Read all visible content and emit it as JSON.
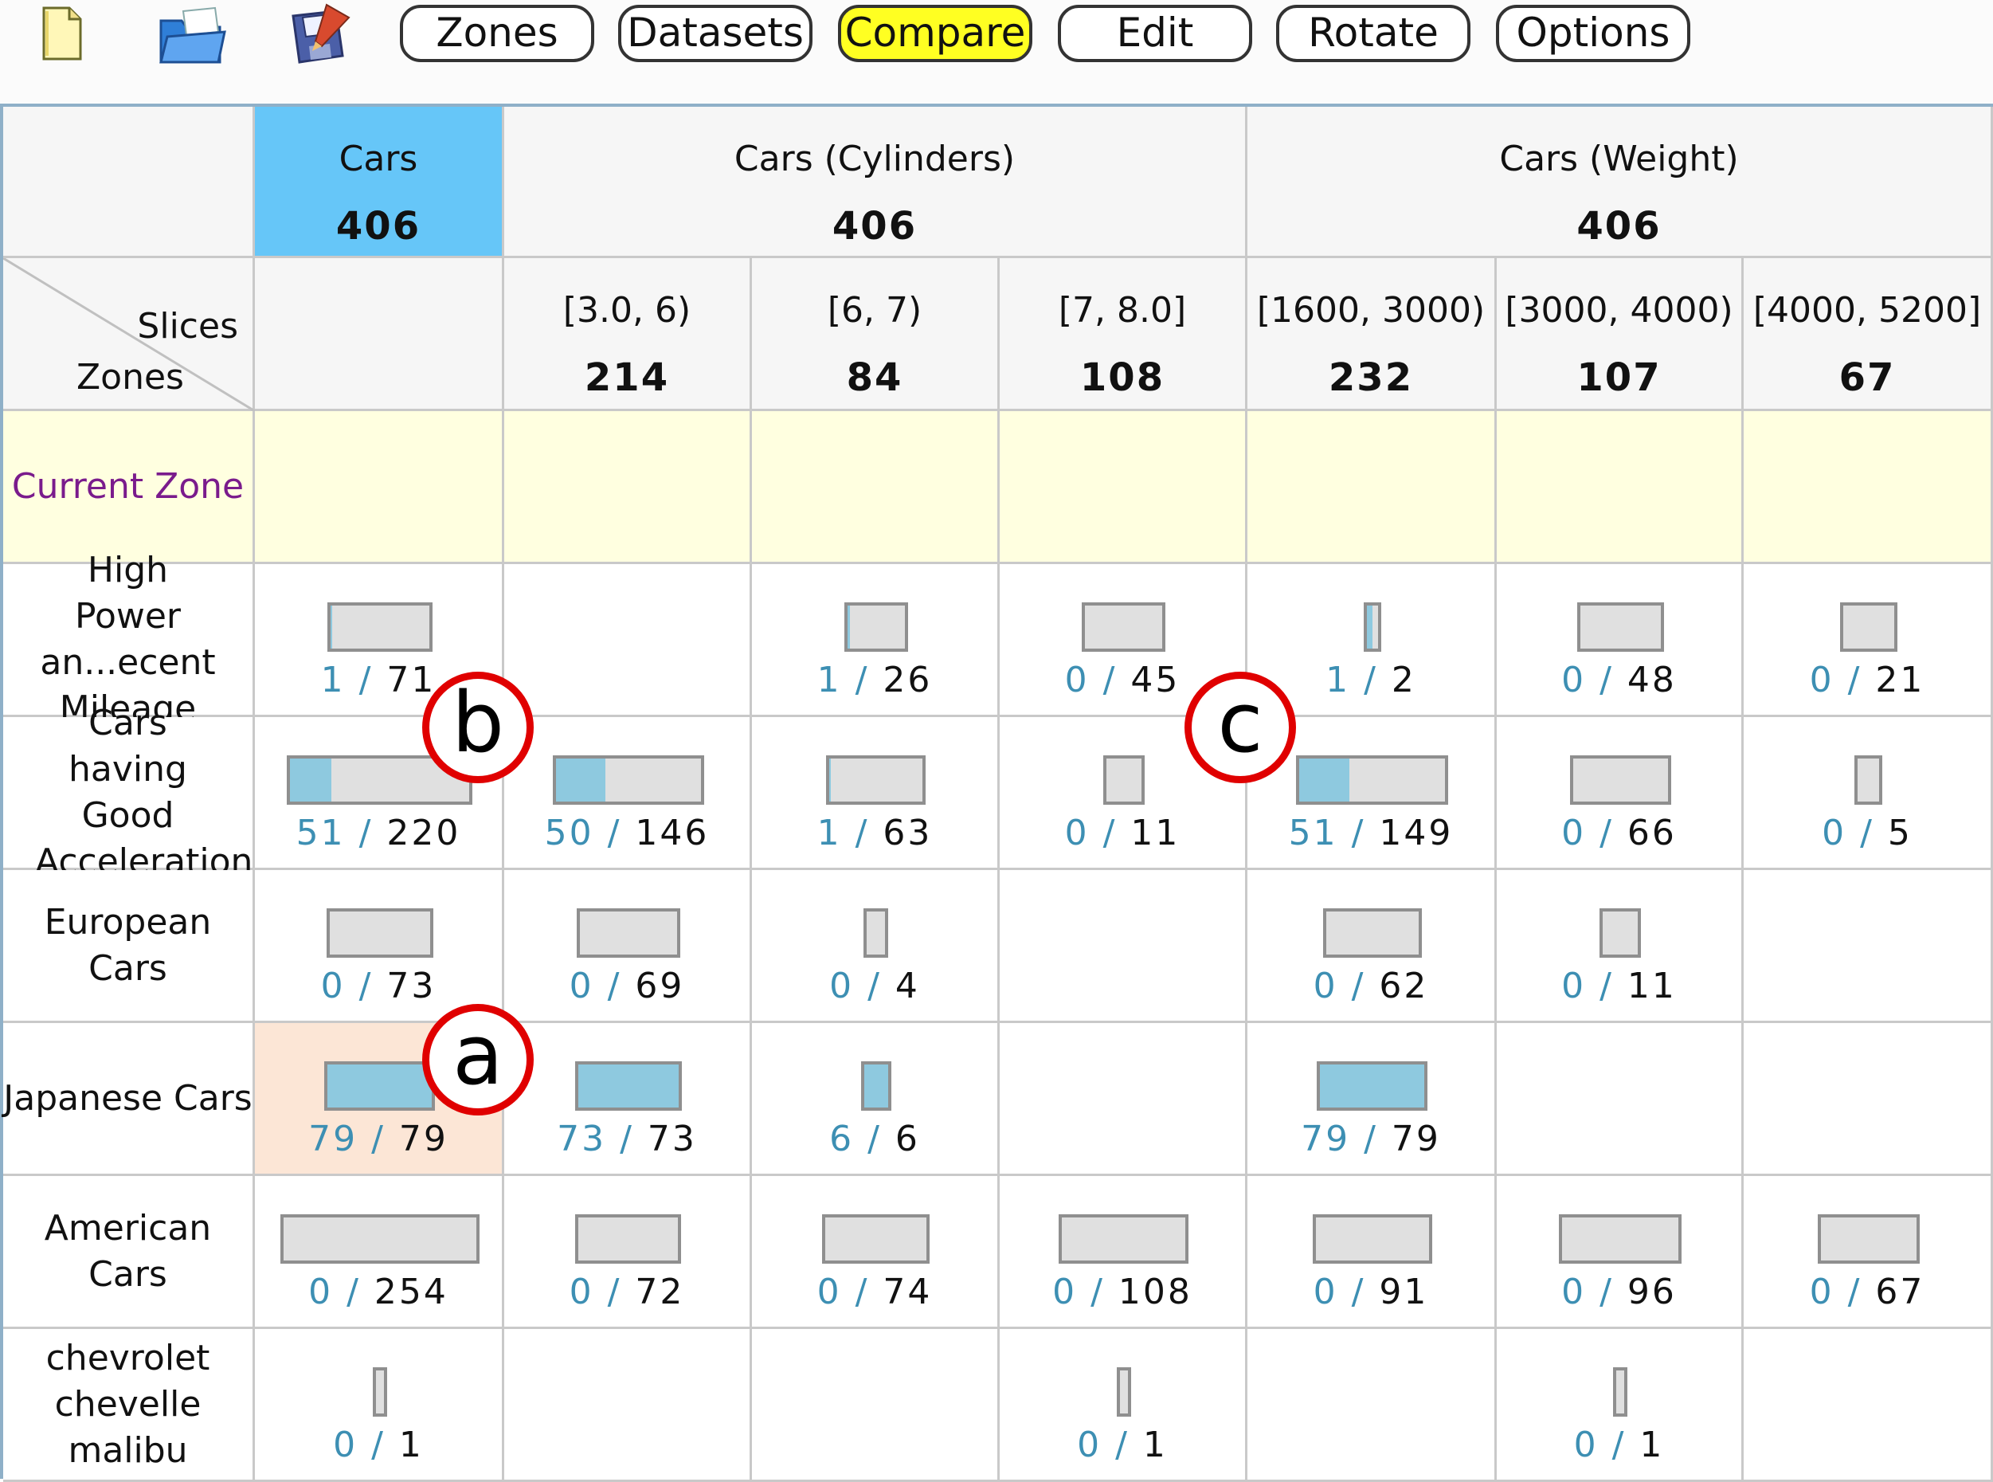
{
  "toolbar": {
    "icons": [
      "new-file-icon",
      "open-folder-icon",
      "save-disk-icon"
    ],
    "buttons": [
      {
        "label": "Zones",
        "active": false
      },
      {
        "label": "Datasets",
        "active": false
      },
      {
        "label": "Compare",
        "active": true
      },
      {
        "label": "Edit",
        "active": false
      },
      {
        "label": "Rotate",
        "active": false
      },
      {
        "label": "Options",
        "active": false
      }
    ]
  },
  "colors": {
    "active_button": "#ffff22",
    "selected_dataset": "#66c6f8",
    "current_zone_row": "#ffffe0",
    "highlighted_cell": "#fce6d6",
    "match_fill": "#8ec9df",
    "bar_background": "#e0e0e0",
    "count_number": "#3d8fb3",
    "current_zone_text": "#7a1b8c",
    "callout_ring": "#e00000"
  },
  "corner": {
    "slices": "Slices",
    "zones": "Zones"
  },
  "datasets": [
    {
      "name": "Cars",
      "count": "406",
      "selected": true
    },
    {
      "name": "Cars (Cylinders)",
      "count": "406",
      "selected": false
    },
    {
      "name": "Cars (Weight)",
      "count": "406",
      "selected": false
    }
  ],
  "slices": [
    {
      "range": "",
      "count": ""
    },
    {
      "range": "[3.0, 6)",
      "count": "214"
    },
    {
      "range": "[6, 7)",
      "count": "84"
    },
    {
      "range": "[7, 8.0]",
      "count": "108"
    },
    {
      "range": "[1600, 3000)",
      "count": "232"
    },
    {
      "range": "[3000, 4000)",
      "count": "107"
    },
    {
      "range": "[4000, 5200]",
      "count": "67"
    }
  ],
  "zones": [
    {
      "label": "Current Zone",
      "current": true,
      "cells": [
        null,
        null,
        null,
        null,
        null,
        null,
        null
      ]
    },
    {
      "label": "High Power an...ecent Mileage",
      "cells": [
        {
          "num": "1",
          "den": "71"
        },
        null,
        {
          "num": "1",
          "den": "26"
        },
        {
          "num": "0",
          "den": "45"
        },
        {
          "num": "1",
          "den": "2"
        },
        {
          "num": "0",
          "den": "48"
        },
        {
          "num": "0",
          "den": "21"
        }
      ]
    },
    {
      "label": "Cars having Good Acceleration",
      "cells": [
        {
          "num": "51",
          "den": "220"
        },
        {
          "num": "50",
          "den": "146"
        },
        {
          "num": "1",
          "den": "63"
        },
        {
          "num": "0",
          "den": "11"
        },
        {
          "num": "51",
          "den": "149"
        },
        {
          "num": "0",
          "den": "66"
        },
        {
          "num": "0",
          "den": "5"
        }
      ]
    },
    {
      "label": "European Cars",
      "cells": [
        {
          "num": "0",
          "den": "73"
        },
        {
          "num": "0",
          "den": "69"
        },
        {
          "num": "0",
          "den": "4"
        },
        null,
        {
          "num": "0",
          "den": "62"
        },
        {
          "num": "0",
          "den": "11"
        },
        null
      ]
    },
    {
      "label": "Japanese Cars",
      "cells": [
        {
          "num": "79",
          "den": "79",
          "highlight": true
        },
        {
          "num": "73",
          "den": "73"
        },
        {
          "num": "6",
          "den": "6"
        },
        null,
        {
          "num": "79",
          "den": "79"
        },
        null,
        null
      ]
    },
    {
      "label": "American Cars",
      "cells": [
        {
          "num": "0",
          "den": "254"
        },
        {
          "num": "0",
          "den": "72"
        },
        {
          "num": "0",
          "den": "74"
        },
        {
          "num": "0",
          "den": "108"
        },
        {
          "num": "0",
          "den": "91"
        },
        {
          "num": "0",
          "den": "96"
        },
        {
          "num": "0",
          "den": "67"
        }
      ]
    },
    {
      "label": "chevrolet chevelle malibu",
      "cells": [
        {
          "num": "0",
          "den": "1"
        },
        null,
        null,
        {
          "num": "0",
          "den": "1"
        },
        null,
        {
          "num": "0",
          "den": "1"
        },
        null
      ]
    }
  ],
  "callouts": [
    "a",
    "b",
    "c"
  ]
}
